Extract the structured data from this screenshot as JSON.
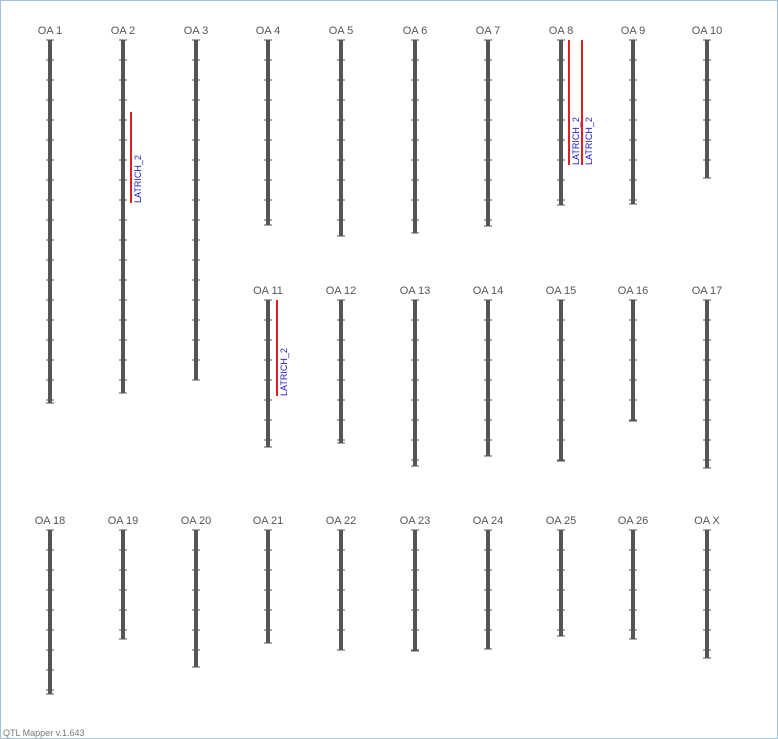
{
  "chromosomes": [
    {
      "label": "OA 1"
    },
    {
      "label": "OA 2"
    },
    {
      "label": "OA 3"
    },
    {
      "label": "OA 4"
    },
    {
      "label": "OA 5"
    },
    {
      "label": "OA 6"
    },
    {
      "label": "OA 7"
    },
    {
      "label": "OA 8"
    },
    {
      "label": "OA 9"
    },
    {
      "label": "OA 10"
    },
    {
      "label": "OA 11"
    },
    {
      "label": "OA 12"
    },
    {
      "label": "OA 13"
    },
    {
      "label": "OA 14"
    },
    {
      "label": "OA 15"
    },
    {
      "label": "OA 16"
    },
    {
      "label": "OA 17"
    },
    {
      "label": "OA 18"
    },
    {
      "label": "OA 19"
    },
    {
      "label": "OA 20"
    },
    {
      "label": "OA 21"
    },
    {
      "label": "OA 22"
    },
    {
      "label": "OA 23"
    },
    {
      "label": "OA 24"
    },
    {
      "label": "OA 25"
    },
    {
      "label": "OA 26"
    },
    {
      "label": "OA X"
    }
  ],
  "qtls": [
    {
      "label": "LATRICH_2"
    },
    {
      "label": "LATRICH_2"
    },
    {
      "label": "LATRICH_2"
    },
    {
      "label": "LATRICH_2"
    }
  ],
  "footer": "QTL Mapper v.1.643"
}
